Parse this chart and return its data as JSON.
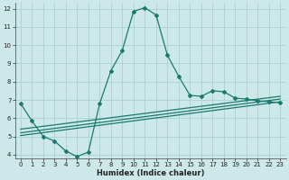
{
  "xlabel": "Humidex (Indice chaleur)",
  "bg_color": "#cce8e8",
  "grid_color": "#b0d4d4",
  "line_color": "#1a7a6e",
  "xlim": [
    -0.5,
    23.5
  ],
  "ylim": [
    3.8,
    12.3
  ],
  "xticks": [
    0,
    1,
    2,
    3,
    4,
    5,
    6,
    7,
    8,
    9,
    10,
    11,
    12,
    13,
    14,
    15,
    16,
    17,
    18,
    19,
    20,
    21,
    22,
    23
  ],
  "yticks": [
    4,
    5,
    6,
    7,
    8,
    9,
    10,
    11,
    12
  ],
  "line1_x": [
    0,
    1,
    2,
    3,
    4,
    5,
    6,
    7,
    8,
    9,
    10,
    11,
    12,
    13,
    14,
    15,
    16,
    17,
    18,
    19,
    20,
    21,
    22,
    23
  ],
  "line1_y": [
    6.8,
    5.85,
    5.0,
    4.75,
    4.2,
    3.9,
    4.15,
    6.8,
    8.6,
    9.7,
    11.85,
    12.05,
    11.65,
    9.45,
    8.3,
    7.25,
    7.2,
    7.5,
    7.45,
    7.1,
    7.05,
    6.95,
    6.9,
    6.85
  ],
  "line2_x": [
    0,
    23
  ],
  "line2_y": [
    5.05,
    6.9
  ],
  "line3_x": [
    0,
    23
  ],
  "line3_y": [
    5.2,
    7.05
  ],
  "line4_x": [
    0,
    23
  ],
  "line4_y": [
    5.4,
    7.2
  ]
}
